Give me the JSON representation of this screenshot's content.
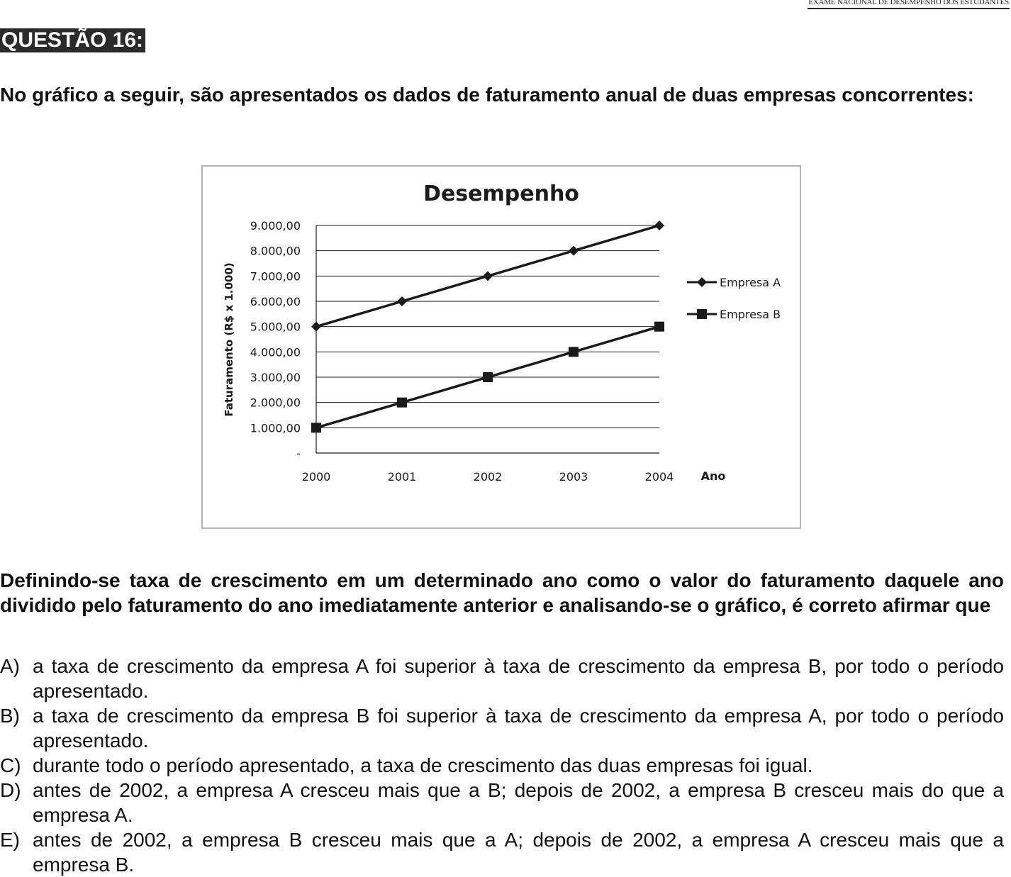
{
  "header": {
    "exam_name": "EXAME NACIONAL DE DESEMPENHO DOS ESTUDANTES"
  },
  "question": {
    "label": "QUESTÃO 16:",
    "intro": "No gráfico a seguir, são apresentados os dados de faturamento anual de duas empresas concorrentes:",
    "stem": "Definindo-se taxa de crescimento em um determinado ano como o valor do faturamento daquele ano dividido pelo faturamento do ano imediatamente anterior e analisando-se o gráfico, é correto afirmar que",
    "options": [
      {
        "letter": "A)",
        "text": "a taxa de crescimento da empresa A foi superior à taxa de crescimento da empresa B, por todo o período apresentado."
      },
      {
        "letter": "B)",
        "text": "a taxa de crescimento da empresa B foi superior à taxa de crescimento da empresa A, por todo o período apresentado."
      },
      {
        "letter": "C)",
        "text": "durante todo o período apresentado, a taxa de crescimento das duas empresas foi igual."
      },
      {
        "letter": "D)",
        "text": "antes de 2002, a empresa A cresceu mais que a B; depois de 2002, a empresa B cresceu mais do que a empresa A."
      },
      {
        "letter": "E)",
        "text": "antes de 2002, a empresa B cresceu mais que a A; depois de 2002, a empresa A cresceu mais que a empresa B."
      }
    ]
  },
  "chart_data": {
    "type": "line",
    "title": "Desempenho",
    "xlabel": "Ano",
    "ylabel": "Faturamento (R$ x 1.000)",
    "x": [
      "2000",
      "2001",
      "2002",
      "2003",
      "2004"
    ],
    "ylim": [
      0,
      9000
    ],
    "yticks": [
      0,
      1000,
      2000,
      3000,
      4000,
      5000,
      6000,
      7000,
      8000,
      9000
    ],
    "ytick_labels": [
      "-",
      "1.000,00",
      "2.000,00",
      "3.000,00",
      "4.000,00",
      "5.000,00",
      "6.000,00",
      "7.000,00",
      "8.000,00",
      "9.000,00"
    ],
    "grid": true,
    "legend": "right",
    "series": [
      {
        "name": "Empresa A",
        "values": [
          5000,
          6000,
          7000,
          8000,
          9000
        ],
        "marker": "diamond",
        "color": "#1a1a1a"
      },
      {
        "name": "Empresa B",
        "values": [
          1000,
          2000,
          3000,
          4000,
          5000
        ],
        "marker": "square",
        "color": "#1a1a1a"
      }
    ]
  }
}
